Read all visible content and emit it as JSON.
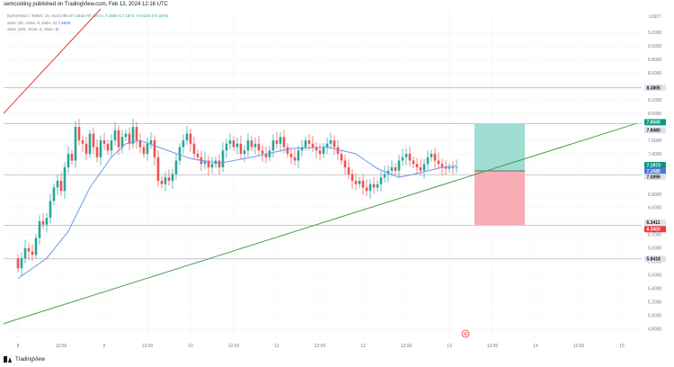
{
  "header": {
    "publisher_line": "semcooting published on TradingView.com, Feb 13, 2024 12:16 UTC"
  },
  "legend": {
    "symbol": "Dymension / Tether, 1h, KUCOIN",
    "o_label": "O",
    "o_value": "7.1815",
    "h_label": "H",
    "h_value": "7.1973",
    "l_label": "L",
    "l_value": "7.1650",
    "c_label": "C",
    "c_value": "7.1973",
    "change": "+0.0158 (+0.22%)",
    "sma1_label": "SMA (20, close, 0, SMA, 5)",
    "sma1_value": "7.2520",
    "sma2_label": "SMA (200, close, 0, SMA, 5)"
  },
  "footer": {
    "brand": "TradingView"
  },
  "currency": "USDT",
  "colors": {
    "up": "#26a69a",
    "down": "#ef5350",
    "sma": "#6f97e8",
    "trendline_green": "#43a047",
    "trendline_red": "#e53935",
    "target_zone": "#9fdcd2",
    "stop_zone": "#f8acb4",
    "grid": "#f0f3fa",
    "axis_text": "#787b86"
  },
  "chart_data": {
    "type": "candlestick",
    "y_axis": {
      "ylim": [
        4.65,
        9.55
      ],
      "ticks": [
        "9.2000",
        "9.0000",
        "8.8000",
        "8.6000",
        "8.4000",
        "8.2000",
        "8.0000",
        "7.6000",
        "7.4000",
        "7.2000",
        "6.8000",
        "6.6000",
        "6.4000",
        "6.2000",
        "6.0000",
        "5.8000",
        "5.6000",
        "5.4000",
        "5.2000",
        "5.0000",
        "4.8000"
      ]
    },
    "x_axis": {
      "ticks": [
        {
          "label": "8",
          "t": 0
        },
        {
          "label": "12:00",
          "t": 12
        },
        {
          "label": "9",
          "t": 24
        },
        {
          "label": "12:00",
          "t": 36
        },
        {
          "label": "10",
          "t": 48
        },
        {
          "label": "12:00",
          "t": 60
        },
        {
          "label": "11",
          "t": 72
        },
        {
          "label": "12:00",
          "t": 84
        },
        {
          "label": "12",
          "t": 96
        },
        {
          "label": "12:00",
          "t": 108
        },
        {
          "label": "13",
          "t": 120
        },
        {
          "label": "12:00",
          "t": 132
        },
        {
          "label": "14",
          "t": 144
        },
        {
          "label": "12:00",
          "t": 156
        },
        {
          "label": "15",
          "t": 168
        }
      ]
    },
    "candles_open": 5.85,
    "candles_close": [
      5.7,
      5.85,
      6.0,
      5.95,
      5.9,
      6.15,
      6.4,
      6.35,
      6.45,
      6.7,
      6.9,
      7.0,
      6.85,
      7.2,
      7.4,
      7.3,
      7.8,
      7.6,
      7.55,
      7.4,
      7.7,
      7.5,
      7.35,
      7.6,
      7.55,
      7.45,
      7.6,
      7.75,
      7.5,
      7.65,
      7.7,
      7.55,
      7.8,
      7.6,
      7.5,
      7.4,
      7.55,
      7.6,
      7.35,
      7.0,
      6.95,
      7.05,
      7.0,
      7.1,
      7.3,
      7.5,
      7.6,
      7.7,
      7.55,
      7.4,
      7.35,
      7.25,
      7.3,
      7.2,
      7.25,
      7.3,
      7.2,
      7.45,
      7.55,
      7.6,
      7.5,
      7.55,
      7.4,
      7.45,
      7.6,
      7.5,
      7.55,
      7.45,
      7.4,
      7.35,
      7.45,
      7.6,
      7.55,
      7.65,
      7.5,
      7.4,
      7.35,
      7.3,
      7.45,
      7.5,
      7.6,
      7.55,
      7.5,
      7.45,
      7.4,
      7.5,
      7.55,
      7.6,
      7.5,
      7.4,
      7.3,
      7.2,
      7.1,
      7.0,
      6.95,
      7.0,
      6.9,
      6.85,
      6.95,
      6.9,
      6.95,
      7.05,
      7.1,
      7.15,
      7.2,
      7.15,
      7.3,
      7.35,
      7.4,
      7.3,
      7.25,
      7.2,
      7.15,
      7.25,
      7.35,
      7.4,
      7.3,
      7.25,
      7.2,
      7.18,
      7.2,
      7.19,
      7.197
    ],
    "sma20": [
      {
        "t": 0,
        "v": 5.55
      },
      {
        "t": 8,
        "v": 5.85
      },
      {
        "t": 14,
        "v": 6.25
      },
      {
        "t": 20,
        "v": 6.9
      },
      {
        "t": 26,
        "v": 7.35
      },
      {
        "t": 30,
        "v": 7.55
      },
      {
        "t": 34,
        "v": 7.6
      },
      {
        "t": 40,
        "v": 7.48
      },
      {
        "t": 48,
        "v": 7.33
      },
      {
        "t": 56,
        "v": 7.26
      },
      {
        "t": 66,
        "v": 7.36
      },
      {
        "t": 76,
        "v": 7.48
      },
      {
        "t": 86,
        "v": 7.5
      },
      {
        "t": 94,
        "v": 7.4
      },
      {
        "t": 100,
        "v": 7.18
      },
      {
        "t": 106,
        "v": 7.05
      },
      {
        "t": 112,
        "v": 7.12
      },
      {
        "t": 118,
        "v": 7.2
      },
      {
        "t": 122,
        "v": 7.22
      }
    ],
    "drawings": {
      "trendline_support": {
        "t1": 0,
        "v1": 4.88,
        "t2": 172,
        "v2": 7.85
      },
      "trendline_red": {
        "t1": 0,
        "v1": 8.0,
        "t2": 23,
        "v2": 9.55
      },
      "long_position": {
        "t1": 127,
        "t2": 141,
        "entry": 7.1465,
        "target": 7.85,
        "stop": 6.34
      }
    },
    "horizontal_levels": [
      8.3805,
      7.848,
      7.0899,
      6.3411,
      5.8418
    ],
    "price_badges": [
      {
        "label": "8.3805",
        "value": 8.3805,
        "bg": "#e0e3eb",
        "fg": "#131722"
      },
      {
        "label": "7.8500",
        "value": 7.87,
        "bg": "#089981",
        "fg": "#ffffff"
      },
      {
        "label": "7.8480",
        "value": 7.75,
        "bg": "#e0e3eb",
        "fg": "#131722"
      },
      {
        "label": "7.1973",
        "value": 7.233,
        "bg": "#089981",
        "fg": "#ffffff"
      },
      {
        "label": "7.1685",
        "value": 7.145,
        "bg": "#4a78d6",
        "fg": "#ffffff"
      },
      {
        "label": "7.0899",
        "value": 7.059,
        "bg": "#e0e3eb",
        "fg": "#131722"
      },
      {
        "label": "6.3411",
        "value": 6.382,
        "bg": "#e0e3eb",
        "fg": "#131722"
      },
      {
        "label": "6.3400",
        "value": 6.283,
        "bg": "#f23645",
        "fg": "#ffffff"
      },
      {
        "label": "5.8418",
        "value": 5.8418,
        "bg": "#e0e3eb",
        "fg": "#131722"
      }
    ]
  }
}
